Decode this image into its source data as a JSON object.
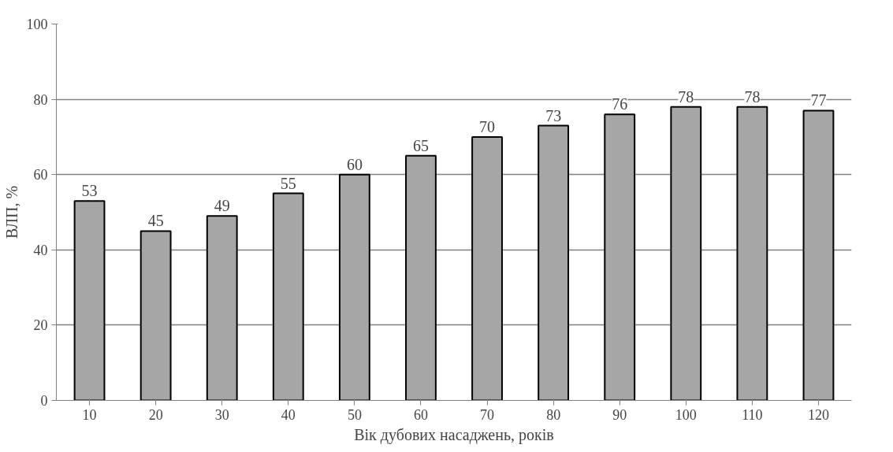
{
  "chart_data": {
    "type": "bar",
    "xlabel": "Вік дубових насаджень, років",
    "ylabel": "ВЛП, %",
    "categories": [
      "10",
      "20",
      "30",
      "40",
      "50",
      "60",
      "70",
      "80",
      "90",
      "100",
      "110",
      "120"
    ],
    "values": [
      53,
      45,
      49,
      55,
      60,
      65,
      70,
      73,
      76,
      78,
      78,
      77
    ],
    "color": "#a6a6a6",
    "ylim": [
      0,
      100
    ],
    "yticks": [
      0,
      20,
      40,
      60,
      80,
      100
    ],
    "grid": "y",
    "data_labels": true
  }
}
